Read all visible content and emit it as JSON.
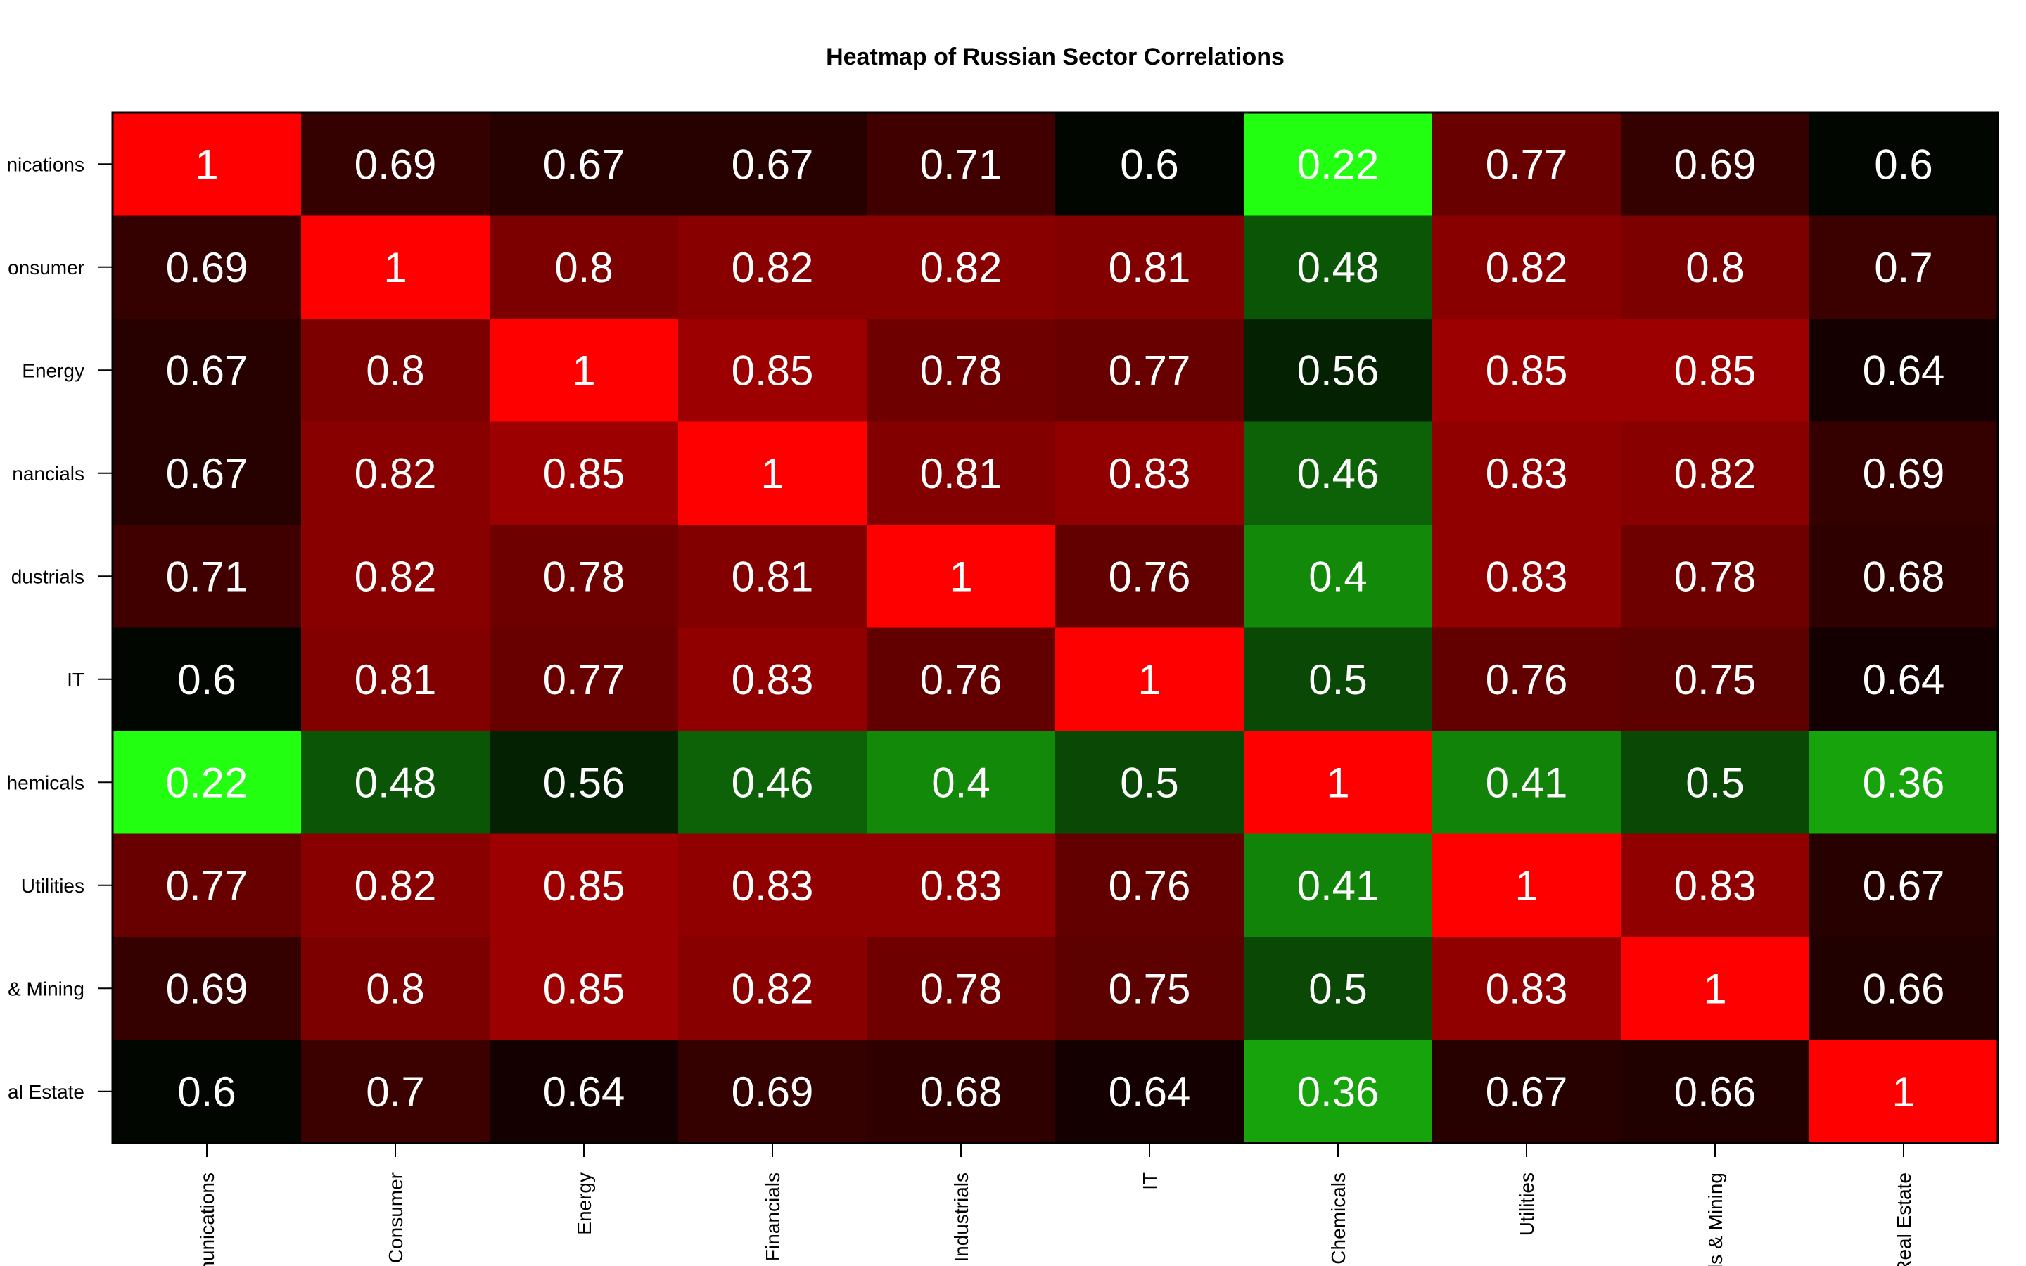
{
  "chart_data": {
    "type": "heatmap",
    "title": "Heatmap of Russian Sector Correlations",
    "row_labels": [
      "nications",
      "onsumer",
      "Energy",
      "nancials",
      "dustrials",
      "IT",
      "hemicals",
      "Utilities",
      "& Mining",
      "al Estate"
    ],
    "col_labels": [
      "munications",
      "Consumer",
      "Energy",
      "Financials",
      "Industrials",
      "IT",
      "Chemicals",
      "Utilities",
      "ls & Mining",
      "Real Estate"
    ],
    "values": [
      [
        1,
        0.69,
        0.67,
        0.67,
        0.71,
        0.6,
        0.22,
        0.77,
        0.69,
        0.6
      ],
      [
        0.69,
        1,
        0.8,
        0.82,
        0.82,
        0.81,
        0.48,
        0.82,
        0.8,
        0.7
      ],
      [
        0.67,
        0.8,
        1,
        0.85,
        0.78,
        0.77,
        0.56,
        0.85,
        0.85,
        0.64
      ],
      [
        0.67,
        0.82,
        0.85,
        1,
        0.81,
        0.83,
        0.46,
        0.83,
        0.82,
        0.69
      ],
      [
        0.71,
        0.82,
        0.78,
        0.81,
        1,
        0.76,
        0.4,
        0.83,
        0.78,
        0.68
      ],
      [
        0.6,
        0.81,
        0.77,
        0.83,
        0.76,
        1,
        0.5,
        0.76,
        0.75,
        0.64
      ],
      [
        0.22,
        0.48,
        0.56,
        0.46,
        0.4,
        0.5,
        1,
        0.41,
        0.5,
        0.36
      ],
      [
        0.77,
        0.82,
        0.85,
        0.83,
        0.83,
        0.76,
        0.41,
        1,
        0.83,
        0.67
      ],
      [
        0.69,
        0.8,
        0.85,
        0.82,
        0.78,
        0.75,
        0.5,
        0.83,
        1,
        0.66
      ],
      [
        0.6,
        0.7,
        0.64,
        0.69,
        0.68,
        0.64,
        0.36,
        0.67,
        0.66,
        1
      ]
    ],
    "color_scale": {
      "low_color": "#22ff11",
      "mid_color": "#000000",
      "high_color": "#ff0000",
      "low_value": 0.22,
      "high_value": 1
    },
    "cell_text_color": "#ffffff"
  }
}
